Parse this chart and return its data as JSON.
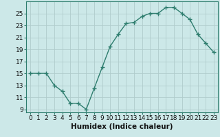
{
  "x": [
    0,
    1,
    2,
    3,
    4,
    5,
    6,
    7,
    8,
    9,
    10,
    11,
    12,
    13,
    14,
    15,
    16,
    17,
    18,
    19,
    20,
    21,
    22,
    23
  ],
  "y": [
    15,
    15,
    15,
    13,
    12,
    10,
    10,
    9,
    12.5,
    16,
    19.5,
    21.5,
    23.3,
    23.5,
    24.5,
    25,
    25,
    26,
    26,
    25,
    24,
    21.5,
    20,
    18.5
  ],
  "line_color": "#2e7d6e",
  "marker_color": "#2e7d6e",
  "bg_color": "#cce8e8",
  "grid_color": "#b0cccc",
  "xlabel": "Humidex (Indice chaleur)",
  "xlim": [
    -0.5,
    23.5
  ],
  "ylim": [
    8.5,
    27
  ],
  "yticks": [
    9,
    11,
    13,
    15,
    17,
    19,
    21,
    23,
    25
  ],
  "xticks": [
    0,
    1,
    2,
    3,
    4,
    5,
    6,
    7,
    8,
    9,
    10,
    11,
    12,
    13,
    14,
    15,
    16,
    17,
    18,
    19,
    20,
    21,
    22,
    23
  ],
  "xtick_labels": [
    "0",
    "1",
    "2",
    "3",
    "4",
    "5",
    "6",
    "7",
    "8",
    "9",
    "10",
    "11",
    "12",
    "13",
    "14",
    "15",
    "16",
    "17",
    "18",
    "19",
    "20",
    "21",
    "22",
    "23"
  ],
  "tick_fontsize": 6.5,
  "xlabel_fontsize": 7.5,
  "marker_size": 2.5,
  "line_width": 1.0
}
